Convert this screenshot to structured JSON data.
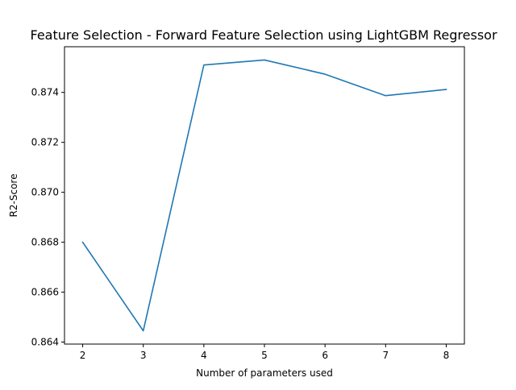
{
  "chart_data": {
    "type": "line",
    "title": "Feature Selection - Forward Feature Selection using LightGBM Regressor",
    "xlabel": "Number of parameters used",
    "ylabel": "R2-Score",
    "x": [
      2,
      3,
      4,
      5,
      6,
      7,
      8
    ],
    "series": [
      {
        "values": [
          0.868,
          0.86445,
          0.8751,
          0.8753,
          0.87473,
          0.87387,
          0.87412
        ]
      }
    ],
    "xticks": [
      2,
      3,
      4,
      5,
      6,
      7,
      8
    ],
    "xtick_labels": [
      "2",
      "3",
      "4",
      "5",
      "6",
      "7",
      "8"
    ],
    "yticks": [
      0.864,
      0.866,
      0.868,
      0.87,
      0.872,
      0.874
    ],
    "ytick_labels": [
      "0.864",
      "0.866",
      "0.868",
      "0.870",
      "0.872",
      "0.874"
    ],
    "xlim": [
      1.7,
      8.3
    ],
    "ylim": [
      0.86392,
      0.87583
    ],
    "grid": false,
    "line_color": "#1f77b4"
  }
}
